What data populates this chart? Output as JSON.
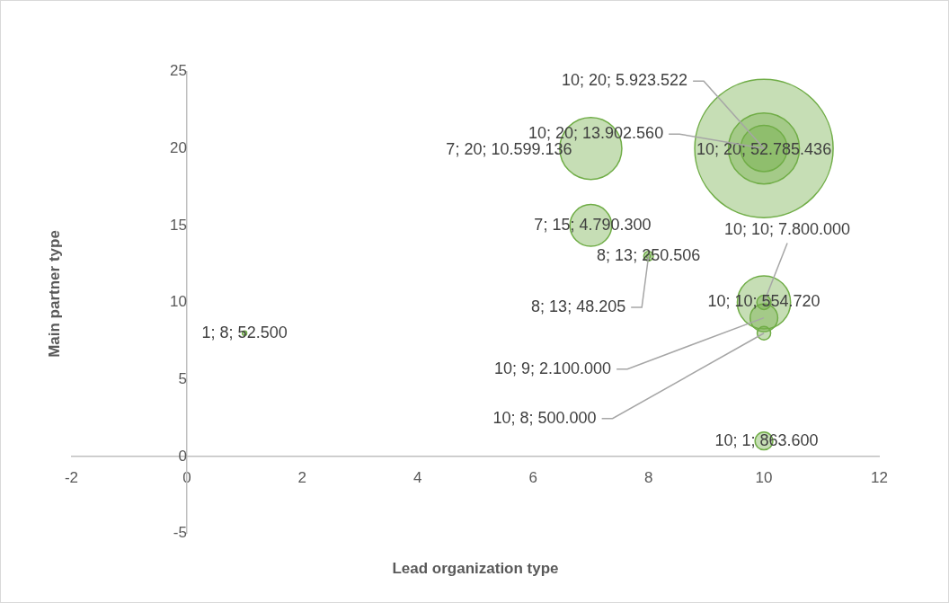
{
  "chart_data": {
    "type": "bubble",
    "xlabel": "Lead organization type",
    "ylabel": "Main partner type",
    "color": "#70ad47",
    "x": [
      1,
      7,
      7,
      8,
      8,
      10,
      10,
      10,
      10,
      10,
      10,
      10,
      10
    ],
    "values": [
      8,
      20,
      15,
      13,
      13,
      20,
      20,
      20,
      10,
      10,
      9,
      8,
      1
    ],
    "sizes": [
      0.001,
      0.201,
      0.091,
      0.0047,
      0.0009,
      1,
      0.263,
      0.112,
      0.148,
      0.0105,
      0.0398,
      0.0095,
      0.0164
    ],
    "value_labels": [
      "1; 8; 52.500",
      "7; 20; 10.599.136",
      "7; 15; 4.790.300",
      "8; 13; 250.506",
      "8; 13; 48.205",
      "10; 20; 52.785.436",
      "10; 20; 13.902.560",
      "10; 20; 5.923.522",
      "10; 10; 7.800.000",
      "10; 10; 554.720",
      "10; 9; 2.100.000",
      "10; 8; 500.000",
      "10; 1; 863.600"
    ],
    "xlim": [
      -2,
      12
    ],
    "ylim": [
      -5,
      25
    ],
    "xticks": [
      -2,
      0,
      2,
      4,
      6,
      8,
      10,
      12
    ],
    "yticks": [
      -5,
      0,
      5,
      10,
      15,
      20,
      25
    ],
    "grid": false,
    "legend": false
  }
}
